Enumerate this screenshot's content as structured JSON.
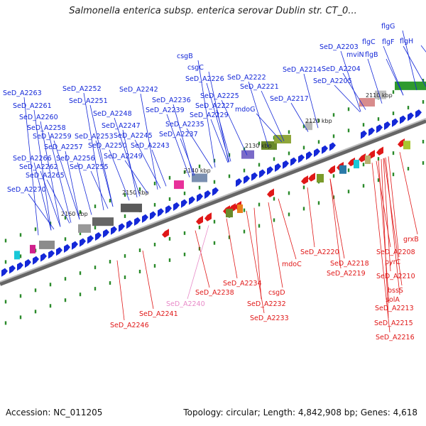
{
  "title": "Salmonella enterica subsp. enterica serovar Dublin str. CT_0...",
  "footer": {
    "accession": "Accession: NC_011205",
    "summary": "Topology: circular; Length: 4,842,908 bp; Genes: 4,618"
  },
  "colors": {
    "forward": "#1428d8",
    "reverse": "#e01818",
    "pseudo": "#e88ac8",
    "backbone": "#888888",
    "tick": "#2a8a2a"
  },
  "kbp_ticks": [
    "2110 kbp",
    "2120 kbp",
    "2130 kbp",
    "2140 kbp",
    "2150 kbp",
    "2160 kbp"
  ],
  "labels_forward": [
    "SeD_A2263",
    "SeD_A2261",
    "SeD_A2260",
    "SeD_A2258",
    "SeD_A2259",
    "SeD_A2257",
    "SeD_A2266",
    "SeD_A2262",
    "SeD_A2265",
    "SeD_A2270",
    "SeD_A2256",
    "SeD_A2255",
    "SeD_A2252",
    "SeD_A2251",
    "SeD_A2248",
    "SeD_A2247",
    "SeD_A2253",
    "SeD_A2250",
    "SeD_A2249",
    "SeD_A2245",
    "SeD_A2243",
    "SeD_A2242",
    "SeD_A2236",
    "SeD_A2239",
    "SeD_A2235",
    "SeD_A2237",
    "csgB",
    "csgC",
    "SeD_A2226",
    "SeD_A2225",
    "SeD_A2227",
    "SeD_A2229",
    "SeD_A2222",
    "SeD_A2221",
    "mdoG",
    "SeD_A2214",
    "SeD_A2217",
    "SeD_A2203",
    "SeD_A2204",
    "SeD_A2205",
    "mviN",
    "flgB",
    "flgC",
    "flgF",
    "flgH",
    "flgG"
  ],
  "labels_reverse": [
    "grxB",
    "SeD_A2208",
    "pyrC",
    "SeD_A2210",
    "bssS",
    "solA",
    "SeD_A2213",
    "SeD_A2215",
    "SeD_A2216",
    "SeD_A2218",
    "SeD_A2219",
    "SeD_A2220",
    "mdoC",
    "csgD",
    "SeD_A2234",
    "SeD_A2232",
    "SeD_A2233",
    "SeD_A2238",
    "SeD_A2241",
    "SeD_A2246"
  ],
  "labels_pseudo": [
    "SeD_A2240"
  ]
}
